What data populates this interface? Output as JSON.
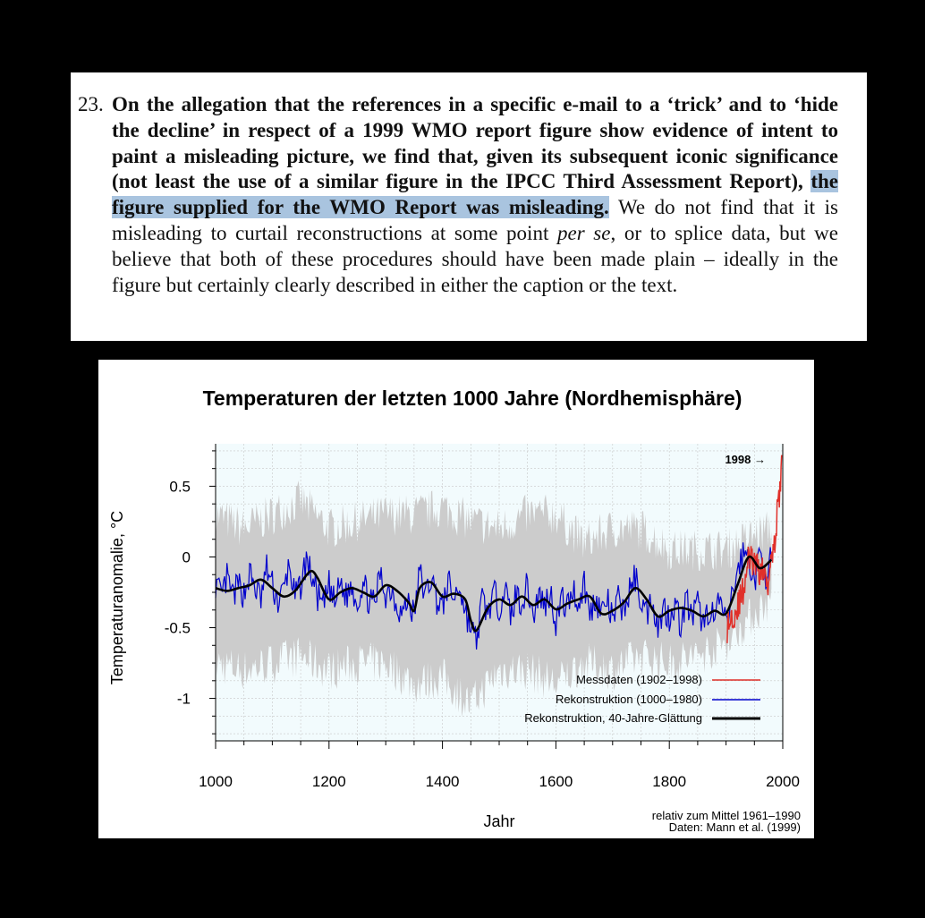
{
  "excerpt": {
    "number": "23.",
    "bold_1": "On the allegation that the references in a specific e-mail to a ‘trick’ and to ‘hide the decline’ in respect of a 1999 WMO report figure show evidence of intent to paint a misleading picture, we find that, given its subsequent iconic significance (not least the use of a similar figure in the IPCC Third Assessment Report),",
    "bold_highlight": "the figure supplied for the WMO Report was misleading.",
    "normal_1": "We do not find that it is misleading to curtail reconstructions at some point",
    "italic": "per se",
    "normal_2": ", or to splice data, but we believe that both of these procedures should have been made plain – ideally in the figure but certainly clearly described in either the caption or the text."
  },
  "chart_data": {
    "type": "line",
    "title": "Temperaturen der letzten 1000 Jahre (Nordhemisphäre)",
    "xlabel": "Jahr",
    "ylabel": "Temperaturanomalie, °C",
    "xlim": [
      1000,
      2000
    ],
    "ylim": [
      -1.3,
      0.8
    ],
    "xticks": [
      1000,
      1200,
      1400,
      1600,
      1800,
      2000
    ],
    "yticks": [
      0.5,
      0,
      -0.5,
      -1
    ],
    "ytick_labels": [
      "0.5",
      "0",
      "-0.5",
      "-1"
    ],
    "grid": true,
    "legend_position": "bottom-right",
    "annotation": "1998 →",
    "note_1": "relativ zum Mittel 1961–1990",
    "note_2": "Daten: Mann et al. (1999)",
    "colors": {
      "measured": "#e0302a",
      "reconstruction": "#0000cc",
      "smooth": "#000000",
      "uncertainty": "#cccccc",
      "plot_background": "#f2fbfd"
    },
    "series": [
      {
        "name": "Rekonstruktion, 40-Jahre-Glättung",
        "x": [
          1000,
          1020,
          1040,
          1060,
          1080,
          1100,
          1120,
          1140,
          1160,
          1170,
          1180,
          1200,
          1220,
          1240,
          1260,
          1280,
          1300,
          1320,
          1340,
          1350,
          1360,
          1380,
          1400,
          1420,
          1440,
          1450,
          1460,
          1480,
          1500,
          1520,
          1540,
          1560,
          1580,
          1600,
          1620,
          1640,
          1660,
          1680,
          1700,
          1720,
          1740,
          1760,
          1780,
          1800,
          1820,
          1840,
          1860,
          1880,
          1900,
          1920,
          1940,
          1960,
          1980
        ],
        "y": [
          -0.22,
          -0.24,
          -0.22,
          -0.2,
          -0.16,
          -0.22,
          -0.28,
          -0.24,
          -0.13,
          -0.1,
          -0.15,
          -0.3,
          -0.25,
          -0.22,
          -0.25,
          -0.28,
          -0.2,
          -0.24,
          -0.32,
          -0.38,
          -0.22,
          -0.18,
          -0.28,
          -0.26,
          -0.3,
          -0.45,
          -0.52,
          -0.36,
          -0.3,
          -0.34,
          -0.28,
          -0.34,
          -0.3,
          -0.37,
          -0.33,
          -0.3,
          -0.28,
          -0.4,
          -0.38,
          -0.32,
          -0.22,
          -0.3,
          -0.42,
          -0.38,
          -0.36,
          -0.38,
          -0.42,
          -0.38,
          -0.4,
          -0.2,
          0.0,
          -0.08,
          -0.02
        ]
      },
      {
        "name": "Rekonstruktion (1000–1980)",
        "x": [
          1000,
          1010,
          1020,
          1030,
          1040,
          1050,
          1060,
          1070,
          1080,
          1090,
          1100,
          1110,
          1120,
          1130,
          1140,
          1150,
          1160,
          1170,
          1180,
          1190,
          1200,
          1210,
          1220,
          1230,
          1240,
          1250,
          1260,
          1270,
          1280,
          1290,
          1300,
          1310,
          1320,
          1330,
          1340,
          1350,
          1360,
          1370,
          1380,
          1390,
          1400,
          1410,
          1420,
          1430,
          1440,
          1450,
          1460,
          1470,
          1480,
          1490,
          1500,
          1510,
          1520,
          1530,
          1540,
          1550,
          1560,
          1570,
          1580,
          1590,
          1600,
          1610,
          1620,
          1630,
          1640,
          1650,
          1660,
          1670,
          1680,
          1690,
          1700,
          1710,
          1720,
          1730,
          1740,
          1750,
          1760,
          1770,
          1780,
          1790,
          1800,
          1810,
          1820,
          1830,
          1840,
          1850,
          1860,
          1870,
          1880,
          1890,
          1900,
          1910,
          1920,
          1930,
          1940,
          1950,
          1960,
          1970,
          1980
        ],
        "y": [
          -0.18,
          -0.3,
          -0.15,
          -0.28,
          -0.2,
          -0.26,
          -0.12,
          -0.22,
          -0.3,
          -0.08,
          -0.2,
          -0.32,
          -0.24,
          -0.05,
          -0.3,
          -0.2,
          -0.02,
          -0.14,
          -0.28,
          -0.36,
          -0.2,
          -0.34,
          -0.18,
          -0.28,
          -0.2,
          -0.32,
          -0.18,
          -0.3,
          -0.35,
          -0.12,
          -0.26,
          -0.22,
          -0.34,
          -0.4,
          -0.3,
          -0.42,
          -0.1,
          -0.28,
          -0.14,
          -0.3,
          -0.36,
          -0.18,
          -0.3,
          -0.2,
          -0.38,
          -0.5,
          -0.6,
          -0.3,
          -0.4,
          -0.26,
          -0.34,
          -0.22,
          -0.42,
          -0.26,
          -0.32,
          -0.2,
          -0.42,
          -0.26,
          -0.34,
          -0.24,
          -0.46,
          -0.3,
          -0.36,
          -0.22,
          -0.34,
          -0.18,
          -0.42,
          -0.28,
          -0.4,
          -0.3,
          -0.46,
          -0.3,
          -0.38,
          -0.24,
          -0.14,
          -0.3,
          -0.4,
          -0.28,
          -0.5,
          -0.36,
          -0.42,
          -0.32,
          -0.48,
          -0.3,
          -0.44,
          -0.34,
          -0.48,
          -0.36,
          -0.44,
          -0.3,
          -0.5,
          -0.3,
          -0.1,
          0.02,
          0.0,
          -0.18,
          0.02,
          -0.12,
          -0.02
        ]
      },
      {
        "name": "Messdaten (1902–1998)",
        "x": [
          1902,
          1910,
          1920,
          1930,
          1940,
          1950,
          1960,
          1970,
          1975,
          1980,
          1985,
          1990,
          1995,
          1998
        ],
        "y": [
          -0.5,
          -0.42,
          -0.36,
          -0.24,
          0.0,
          -0.06,
          -0.1,
          -0.12,
          -0.18,
          0.08,
          0.05,
          0.3,
          0.45,
          0.72
        ]
      }
    ],
    "uncertainty_band": {
      "x": [
        1000,
        1050,
        1100,
        1150,
        1200,
        1250,
        1300,
        1350,
        1400,
        1450,
        1500,
        1550,
        1600,
        1650,
        1700,
        1750,
        1800,
        1850,
        1900,
        1950,
        1980
      ],
      "upper": [
        0.3,
        0.2,
        0.3,
        0.4,
        0.2,
        0.25,
        0.3,
        0.3,
        0.35,
        0.25,
        0.2,
        0.3,
        0.3,
        0.1,
        0.2,
        0.2,
        0.05,
        0.05,
        0.05,
        0.15,
        0.2
      ],
      "lower": [
        -0.75,
        -0.8,
        -0.75,
        -0.7,
        -0.8,
        -0.75,
        -0.75,
        -0.9,
        -0.85,
        -1.05,
        -0.8,
        -0.8,
        -0.9,
        -0.75,
        -0.8,
        -0.7,
        -0.75,
        -0.7,
        -0.6,
        -0.4,
        -0.3
      ]
    }
  }
}
